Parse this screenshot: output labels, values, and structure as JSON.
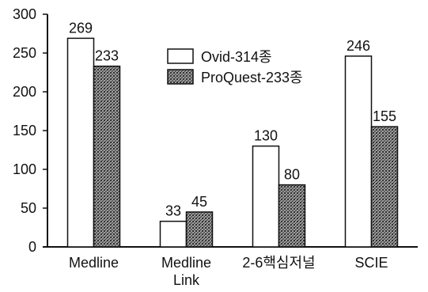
{
  "chart_data": {
    "type": "bar",
    "title": "",
    "xlabel": "",
    "ylabel": "",
    "ylim": [
      0,
      300
    ],
    "yticks": [
      0,
      50,
      100,
      150,
      200,
      250,
      300
    ],
    "grid": false,
    "legend_position": "top-center",
    "categories": [
      [
        "Medline"
      ],
      [
        "Medline",
        "Link"
      ],
      [
        "2-6핵심저널"
      ],
      [
        "SCIE"
      ]
    ],
    "series": [
      {
        "name": "Ovid-314종",
        "values": [
          269,
          33,
          130,
          246
        ],
        "labels": [
          "269",
          "33",
          "130",
          "246"
        ],
        "fill": "#ffffff"
      },
      {
        "name": "ProQuest-233종",
        "values": [
          233,
          45,
          80,
          155
        ],
        "labels": [
          "233",
          "45",
          "80",
          "155"
        ],
        "fill": "#555555"
      }
    ]
  }
}
